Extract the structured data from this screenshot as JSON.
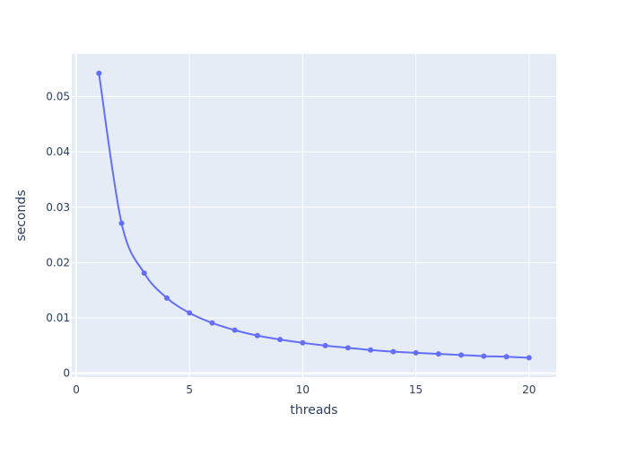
{
  "chart_data": {
    "type": "line",
    "title": "",
    "xlabel": "threads",
    "ylabel": "seconds",
    "xlim": [
      -0.2,
      21.2
    ],
    "ylim": [
      -0.0007,
      0.0577
    ],
    "x_ticks": [
      0,
      5,
      10,
      15,
      20
    ],
    "x_tick_labels": [
      "0",
      "5",
      "10",
      "15",
      "20"
    ],
    "y_ticks": [
      0,
      0.01,
      0.02,
      0.03,
      0.04,
      0.05
    ],
    "y_tick_labels": [
      "0",
      "0.01",
      "0.02",
      "0.03",
      "0.04",
      "0.05"
    ],
    "grid": true,
    "line_shape": "spline",
    "markers": true,
    "colors": {
      "plot_background": "#e5ecf6",
      "grid": "#ffffff",
      "series": "#636efa"
    },
    "series": [
      {
        "x": [
          1,
          2,
          3,
          4,
          5,
          6,
          7,
          8,
          9,
          10,
          11,
          12,
          13,
          14,
          15,
          16,
          17,
          18,
          19,
          20
        ],
        "y": [
          0.0542,
          0.0271,
          0.0181,
          0.0136,
          0.0109,
          0.0091,
          0.0078,
          0.0068,
          0.0061,
          0.0055,
          0.005,
          0.0046,
          0.0042,
          0.0039,
          0.0037,
          0.0035,
          0.0033,
          0.0031,
          0.003,
          0.0028
        ]
      }
    ]
  }
}
